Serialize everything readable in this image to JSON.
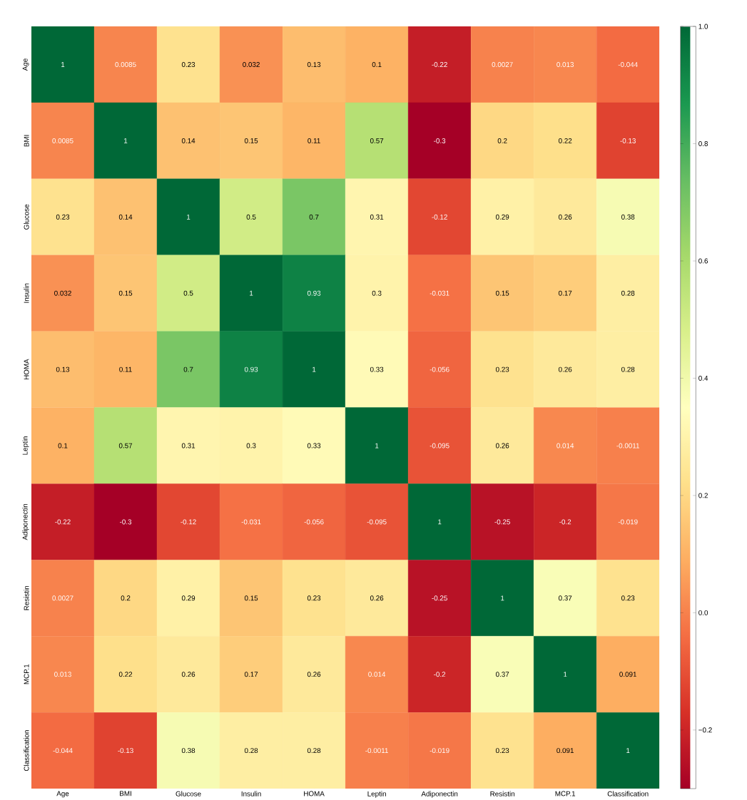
{
  "chart_data": {
    "type": "heatmap",
    "categories": [
      "Age",
      "BMI",
      "Glucose",
      "Insulin",
      "HOMA",
      "Leptin",
      "Adiponectin",
      "Resistin",
      "MCP.1",
      "Classification"
    ],
    "y_categories": [
      "Age",
      "BMI",
      "Glucose",
      "Insulin",
      "HOMA",
      "Leptin",
      "Adiponectin",
      "Resistin",
      "MCP.1",
      "Classification"
    ],
    "cells": [
      [
        1,
        0.0085,
        0.23,
        0.032,
        0.13,
        0.1,
        -0.22,
        0.0027,
        0.013,
        -0.044
      ],
      [
        0.0085,
        1,
        0.14,
        0.15,
        0.11,
        0.57,
        -0.3,
        0.2,
        0.22,
        -0.13
      ],
      [
        0.23,
        0.14,
        1,
        0.5,
        0.7,
        0.31,
        -0.12,
        0.29,
        0.26,
        0.38
      ],
      [
        0.032,
        0.15,
        0.5,
        1,
        0.93,
        0.3,
        -0.031,
        0.15,
        0.17,
        0.28
      ],
      [
        0.13,
        0.11,
        0.7,
        0.93,
        1,
        0.33,
        -0.056,
        0.23,
        0.26,
        0.28
      ],
      [
        0.1,
        0.57,
        0.31,
        0.3,
        0.33,
        1,
        -0.095,
        0.26,
        0.014,
        -0.0011
      ],
      [
        -0.22,
        -0.3,
        -0.12,
        -0.031,
        -0.056,
        -0.095,
        1,
        -0.25,
        -0.2,
        -0.019
      ],
      [
        0.0027,
        0.2,
        0.29,
        0.15,
        0.23,
        0.26,
        -0.25,
        1,
        0.37,
        0.23
      ],
      [
        0.013,
        0.22,
        0.26,
        0.17,
        0.26,
        0.014,
        -0.2,
        0.37,
        1,
        0.091
      ],
      [
        -0.044,
        -0.13,
        0.38,
        0.28,
        0.28,
        -0.0011,
        -0.019,
        0.23,
        0.091,
        1
      ]
    ],
    "data_labels": true,
    "clim": [
      -0.3,
      1
    ],
    "cticks": [
      {
        "value": -0.2,
        "label": "−0.2"
      },
      {
        "value": 0,
        "label": "0.0"
      },
      {
        "value": 0.2,
        "label": "0.2"
      },
      {
        "value": 0.4,
        "label": "0.4"
      },
      {
        "value": 0.6,
        "label": "0.6"
      },
      {
        "value": 0.8,
        "label": "0.8"
      },
      {
        "value": 1,
        "label": "1.0"
      }
    ]
  }
}
